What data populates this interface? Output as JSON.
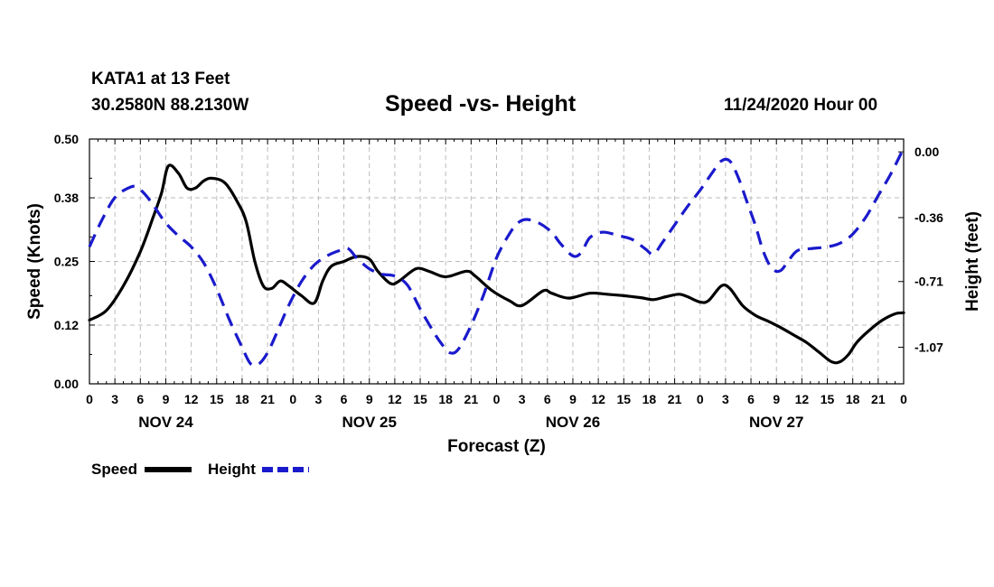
{
  "header": {
    "station": "KATA1 at 13 Feet",
    "coords": "30.2580N 88.2130W",
    "title": "Speed -vs- Height",
    "date": "11/24/2020 Hour 00"
  },
  "legend": [
    {
      "label": "Speed",
      "color": "#000000",
      "style": "solid"
    },
    {
      "label": "Height",
      "color": "#1a1acc",
      "style": "dashed"
    }
  ],
  "chart_data": {
    "type": "line",
    "title": "Speed -vs- Height",
    "xlabel": "Forecast (Z)",
    "ylabel_left": "Speed (Knots)",
    "ylabel_right": "Height (feet)",
    "x_range_hours": [
      0,
      96
    ],
    "x_ticks": [
      {
        "h": 0,
        "label": "0"
      },
      {
        "h": 3,
        "label": "3"
      },
      {
        "h": 6,
        "label": "6"
      },
      {
        "h": 9,
        "label": "9"
      },
      {
        "h": 12,
        "label": "12"
      },
      {
        "h": 15,
        "label": "15"
      },
      {
        "h": 18,
        "label": "18"
      },
      {
        "h": 21,
        "label": "21"
      },
      {
        "h": 24,
        "label": "0"
      },
      {
        "h": 27,
        "label": "3"
      },
      {
        "h": 30,
        "label": "6"
      },
      {
        "h": 33,
        "label": "9"
      },
      {
        "h": 36,
        "label": "12"
      },
      {
        "h": 39,
        "label": "15"
      },
      {
        "h": 42,
        "label": "18"
      },
      {
        "h": 45,
        "label": "21"
      },
      {
        "h": 48,
        "label": "0"
      },
      {
        "h": 51,
        "label": "3"
      },
      {
        "h": 54,
        "label": "6"
      },
      {
        "h": 57,
        "label": "9"
      },
      {
        "h": 60,
        "label": "12"
      },
      {
        "h": 63,
        "label": "15"
      },
      {
        "h": 66,
        "label": "18"
      },
      {
        "h": 69,
        "label": "21"
      },
      {
        "h": 72,
        "label": "0"
      },
      {
        "h": 75,
        "label": "3"
      },
      {
        "h": 78,
        "label": "6"
      },
      {
        "h": 81,
        "label": "9"
      },
      {
        "h": 84,
        "label": "12"
      },
      {
        "h": 87,
        "label": "15"
      },
      {
        "h": 90,
        "label": "18"
      },
      {
        "h": 93,
        "label": "21"
      },
      {
        "h": 96,
        "label": "0"
      }
    ],
    "day_labels": [
      {
        "h": 9,
        "label": "NOV 24"
      },
      {
        "h": 33,
        "label": "NOV 25"
      },
      {
        "h": 57,
        "label": "NOV 26"
      },
      {
        "h": 81,
        "label": "NOV 27"
      }
    ],
    "y_left": {
      "range": [
        0,
        0.5
      ],
      "ticks": [
        0.0,
        0.12,
        0.25,
        0.38,
        0.5
      ],
      "tick_labels": [
        "0.00",
        "0.12",
        "0.25",
        "0.38",
        "0.50"
      ]
    },
    "y_right": {
      "range": [
        -1.27,
        0.07
      ],
      "ticks": [
        0.0,
        -0.36,
        -0.71,
        -1.07
      ],
      "tick_labels": [
        "0.00",
        "-0.36",
        "-0.71",
        "-1.07"
      ]
    },
    "grid": true,
    "series": [
      {
        "name": "Speed",
        "axis": "left",
        "color": "#000000",
        "dashed": false,
        "points": [
          [
            0,
            0.13
          ],
          [
            2,
            0.15
          ],
          [
            4,
            0.2
          ],
          [
            6,
            0.27
          ],
          [
            7.5,
            0.34
          ],
          [
            8.5,
            0.39
          ],
          [
            9.3,
            0.445
          ],
          [
            10.5,
            0.43
          ],
          [
            11.5,
            0.4
          ],
          [
            12.5,
            0.4
          ],
          [
            13.5,
            0.415
          ],
          [
            14.5,
            0.42
          ],
          [
            16,
            0.41
          ],
          [
            17.5,
            0.37
          ],
          [
            18.5,
            0.33
          ],
          [
            19.5,
            0.25
          ],
          [
            20.5,
            0.2
          ],
          [
            21.5,
            0.195
          ],
          [
            22.5,
            0.21
          ],
          [
            23.5,
            0.2
          ],
          [
            25,
            0.18
          ],
          [
            26.5,
            0.165
          ],
          [
            27.5,
            0.21
          ],
          [
            28.5,
            0.24
          ],
          [
            30,
            0.25
          ],
          [
            31.5,
            0.26
          ],
          [
            33,
            0.255
          ],
          [
            34,
            0.23
          ],
          [
            35.5,
            0.205
          ],
          [
            36.5,
            0.21
          ],
          [
            38.5,
            0.235
          ],
          [
            40,
            0.23
          ],
          [
            41.5,
            0.22
          ],
          [
            42.5,
            0.22
          ],
          [
            44.5,
            0.23
          ],
          [
            45.5,
            0.22
          ],
          [
            47.5,
            0.19
          ],
          [
            49.5,
            0.17
          ],
          [
            51,
            0.16
          ],
          [
            53.5,
            0.19
          ],
          [
            54.5,
            0.185
          ],
          [
            56.5,
            0.175
          ],
          [
            59,
            0.185
          ],
          [
            61,
            0.183
          ],
          [
            63,
            0.18
          ],
          [
            65,
            0.176
          ],
          [
            66.5,
            0.172
          ],
          [
            68,
            0.178
          ],
          [
            69.5,
            0.183
          ],
          [
            70.5,
            0.178
          ],
          [
            72,
            0.167
          ],
          [
            73,
            0.17
          ],
          [
            74.5,
            0.2
          ],
          [
            75.5,
            0.195
          ],
          [
            77,
            0.16
          ],
          [
            78.5,
            0.14
          ],
          [
            80,
            0.128
          ],
          [
            81.5,
            0.115
          ],
          [
            83,
            0.1
          ],
          [
            84.5,
            0.085
          ],
          [
            86,
            0.065
          ],
          [
            87.5,
            0.045
          ],
          [
            88.5,
            0.045
          ],
          [
            89.5,
            0.06
          ],
          [
            90.5,
            0.085
          ],
          [
            92,
            0.11
          ],
          [
            93.5,
            0.13
          ],
          [
            95,
            0.143
          ],
          [
            96,
            0.145
          ]
        ]
      },
      {
        "name": "Height",
        "axis": "right",
        "color": "#1a1acc",
        "dashed": true,
        "points": [
          [
            0,
            -0.52
          ],
          [
            1.5,
            -0.37
          ],
          [
            3,
            -0.25
          ],
          [
            4.5,
            -0.2
          ],
          [
            5.5,
            -0.19
          ],
          [
            6.5,
            -0.23
          ],
          [
            7.5,
            -0.29
          ],
          [
            9,
            -0.39
          ],
          [
            10.5,
            -0.46
          ],
          [
            12,
            -0.52
          ],
          [
            13.5,
            -0.61
          ],
          [
            15,
            -0.75
          ],
          [
            16.5,
            -0.92
          ],
          [
            18,
            -1.07
          ],
          [
            19,
            -1.16
          ],
          [
            20,
            -1.16
          ],
          [
            21,
            -1.1
          ],
          [
            22,
            -1.0
          ],
          [
            23.5,
            -0.84
          ],
          [
            25,
            -0.71
          ],
          [
            26.5,
            -0.62
          ],
          [
            28,
            -0.57
          ],
          [
            29.5,
            -0.54
          ],
          [
            30.5,
            -0.53
          ],
          [
            31.5,
            -0.58
          ],
          [
            33,
            -0.64
          ],
          [
            34.5,
            -0.67
          ],
          [
            36,
            -0.68
          ],
          [
            37.5,
            -0.73
          ],
          [
            39,
            -0.86
          ],
          [
            40.5,
            -0.98
          ],
          [
            41.5,
            -1.05
          ],
          [
            42.5,
            -1.1
          ],
          [
            43.5,
            -1.08
          ],
          [
            45,
            -0.95
          ],
          [
            46.5,
            -0.78
          ],
          [
            48,
            -0.58
          ],
          [
            49.5,
            -0.45
          ],
          [
            50.5,
            -0.39
          ],
          [
            51.5,
            -0.37
          ],
          [
            53,
            -0.39
          ],
          [
            54.5,
            -0.44
          ],
          [
            55.5,
            -0.5
          ],
          [
            57,
            -0.57
          ],
          [
            58,
            -0.55
          ],
          [
            59,
            -0.47
          ],
          [
            60.5,
            -0.44
          ],
          [
            62.5,
            -0.46
          ],
          [
            64,
            -0.48
          ],
          [
            65.5,
            -0.53
          ],
          [
            66.5,
            -0.56
          ],
          [
            67.5,
            -0.5
          ],
          [
            69,
            -0.4
          ],
          [
            70.5,
            -0.3
          ],
          [
            72,
            -0.21
          ],
          [
            73.5,
            -0.11
          ],
          [
            74.5,
            -0.05
          ],
          [
            75.5,
            -0.05
          ],
          [
            76.5,
            -0.14
          ],
          [
            77.5,
            -0.27
          ],
          [
            78.5,
            -0.4
          ],
          [
            79.5,
            -0.55
          ],
          [
            80.5,
            -0.64
          ],
          [
            81.5,
            -0.65
          ],
          [
            82.5,
            -0.59
          ],
          [
            83.5,
            -0.54
          ],
          [
            85,
            -0.53
          ],
          [
            87,
            -0.52
          ],
          [
            88.5,
            -0.5
          ],
          [
            90,
            -0.45
          ],
          [
            91.5,
            -0.36
          ],
          [
            93,
            -0.24
          ],
          [
            94.5,
            -0.12
          ],
          [
            96,
            0.02
          ]
        ]
      }
    ]
  }
}
